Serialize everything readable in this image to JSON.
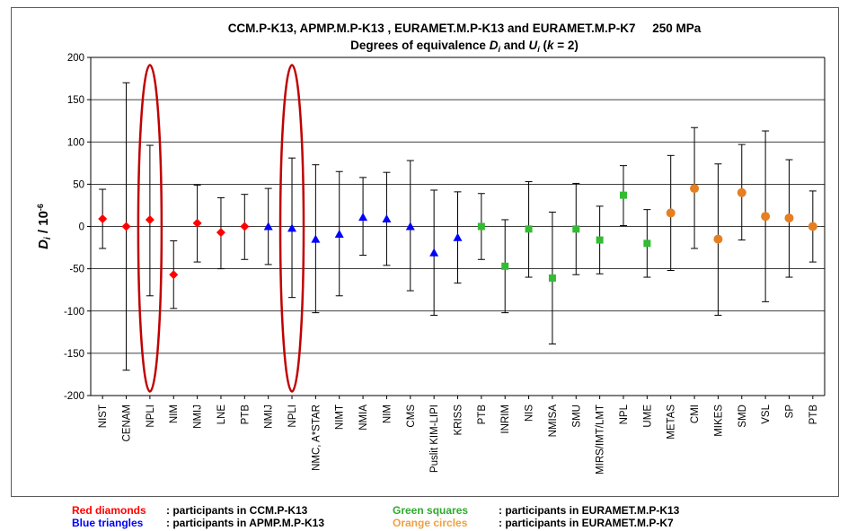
{
  "chart_data": {
    "type": "scatter",
    "title_line1": "CCM.P-K13, APMP.M.P-K13 , EURAMET.M.P-K13 and EURAMET.M.P-K7     250 MPa",
    "title_line2_parts": [
      "Degrees of equivalence ",
      "D",
      "i",
      " and ",
      "U",
      "i",
      " (",
      "k",
      " = 2)"
    ],
    "ylabel_main": "D",
    "ylabel_sub": "i",
    "ylabel_rest": " / 10",
    "ylabel_exp": "-6",
    "ylim": [
      -200,
      200
    ],
    "yticks": [
      200,
      150,
      100,
      50,
      0,
      -50,
      -100,
      -150,
      -200
    ],
    "grid": true,
    "colors": {
      "red": "#ff0000",
      "blue": "#0000ff",
      "green": "#33bb33",
      "orange": "#e67e22",
      "errorbar": "#000000",
      "highlight": "#c00000"
    },
    "points": [
      {
        "label": "NIST",
        "value": 9,
        "lower": -26,
        "upper": 44,
        "marker": "diamond",
        "color": "red"
      },
      {
        "label": "CENAM",
        "value": 0,
        "lower": -170,
        "upper": 170,
        "marker": "diamond",
        "color": "red"
      },
      {
        "label": "NPLI",
        "value": 8,
        "lower": -82,
        "upper": 96,
        "marker": "diamond",
        "color": "red"
      },
      {
        "label": "NIM",
        "value": -57,
        "lower": -97,
        "upper": -17,
        "marker": "diamond",
        "color": "red"
      },
      {
        "label": "NMIJ",
        "value": 4,
        "lower": -42,
        "upper": 49,
        "marker": "diamond",
        "color": "red"
      },
      {
        "label": "LNE",
        "value": -7,
        "lower": -50,
        "upper": 34,
        "marker": "diamond",
        "color": "red"
      },
      {
        "label": "PTB",
        "value": 0,
        "lower": -39,
        "upper": 38,
        "marker": "diamond",
        "color": "red"
      },
      {
        "label": "NMIJ",
        "value": 0,
        "lower": -45,
        "upper": 45,
        "marker": "triangle",
        "color": "blue"
      },
      {
        "label": "NPLI",
        "value": -2,
        "lower": -84,
        "upper": 81,
        "marker": "triangle",
        "color": "blue"
      },
      {
        "label": "NMC, A*STAR",
        "value": -15,
        "lower": -102,
        "upper": 73,
        "marker": "triangle",
        "color": "blue"
      },
      {
        "label": "NIMT",
        "value": -9,
        "lower": -82,
        "upper": 65,
        "marker": "triangle",
        "color": "blue"
      },
      {
        "label": "NMIA",
        "value": 11,
        "lower": -34,
        "upper": 58,
        "marker": "triangle",
        "color": "blue"
      },
      {
        "label": "NIM",
        "value": 9,
        "lower": -46,
        "upper": 64,
        "marker": "triangle",
        "color": "blue"
      },
      {
        "label": "CMS",
        "value": 0,
        "lower": -76,
        "upper": 78,
        "marker": "triangle",
        "color": "blue"
      },
      {
        "label": "Puslit KIM-LIPI",
        "value": -31,
        "lower": -105,
        "upper": 43,
        "marker": "triangle",
        "color": "blue"
      },
      {
        "label": "KRISS",
        "value": -13,
        "lower": -67,
        "upper": 41,
        "marker": "triangle",
        "color": "blue"
      },
      {
        "label": "PTB",
        "value": 0,
        "lower": -39,
        "upper": 39,
        "marker": "square",
        "color": "green"
      },
      {
        "label": "INRIM",
        "value": -47,
        "lower": -102,
        "upper": 8,
        "marker": "square",
        "color": "green"
      },
      {
        "label": "NIS",
        "value": -3,
        "lower": -60,
        "upper": 53,
        "marker": "square",
        "color": "green"
      },
      {
        "label": "NMISA",
        "value": -61,
        "lower": -139,
        "upper": 17,
        "marker": "square",
        "color": "green"
      },
      {
        "label": "SMU",
        "value": -3,
        "lower": -57,
        "upper": 51,
        "marker": "square",
        "color": "green"
      },
      {
        "label": "MIRS/IMT/LMT",
        "value": -16,
        "lower": -56,
        "upper": 24,
        "marker": "square",
        "color": "green"
      },
      {
        "label": "NPL",
        "value": 37,
        "lower": 1,
        "upper": 72,
        "marker": "square",
        "color": "green"
      },
      {
        "label": "UME",
        "value": -20,
        "lower": -60,
        "upper": 20,
        "marker": "square",
        "color": "green"
      },
      {
        "label": "METAS",
        "value": 16,
        "lower": -52,
        "upper": 84,
        "marker": "circle",
        "color": "orange"
      },
      {
        "label": "CMI",
        "value": 45,
        "lower": -26,
        "upper": 117,
        "marker": "circle",
        "color": "orange"
      },
      {
        "label": "MIKES",
        "value": -15,
        "lower": -105,
        "upper": 74,
        "marker": "circle",
        "color": "orange"
      },
      {
        "label": "SMD",
        "value": 40,
        "lower": -16,
        "upper": 97,
        "marker": "circle",
        "color": "orange"
      },
      {
        "label": "VSL",
        "value": 12,
        "lower": -89,
        "upper": 113,
        "marker": "circle",
        "color": "orange"
      },
      {
        "label": "SP",
        "value": 10,
        "lower": -60,
        "upper": 79,
        "marker": "circle",
        "color": "orange"
      },
      {
        "label": "PTB",
        "value": 0,
        "lower": -42,
        "upper": 42,
        "marker": "circle",
        "color": "orange"
      }
    ],
    "highlighted_indices": [
      2,
      8
    ]
  },
  "legend": [
    {
      "key": "Red diamonds",
      "desc": ": participants in CCM.P-K13",
      "color": "#ff0000"
    },
    {
      "key": "Blue triangles",
      "desc": ": participants in APMP.M.P-K13",
      "color": "#0000ff"
    },
    {
      "key": "Green squares",
      "desc": ": participants in EURAMET.M.P-K13",
      "color": "#2eaa2e"
    },
    {
      "key": "Orange circles",
      "desc": ": participants in EURAMET.M.P-K7",
      "color": "#f0a040"
    }
  ]
}
